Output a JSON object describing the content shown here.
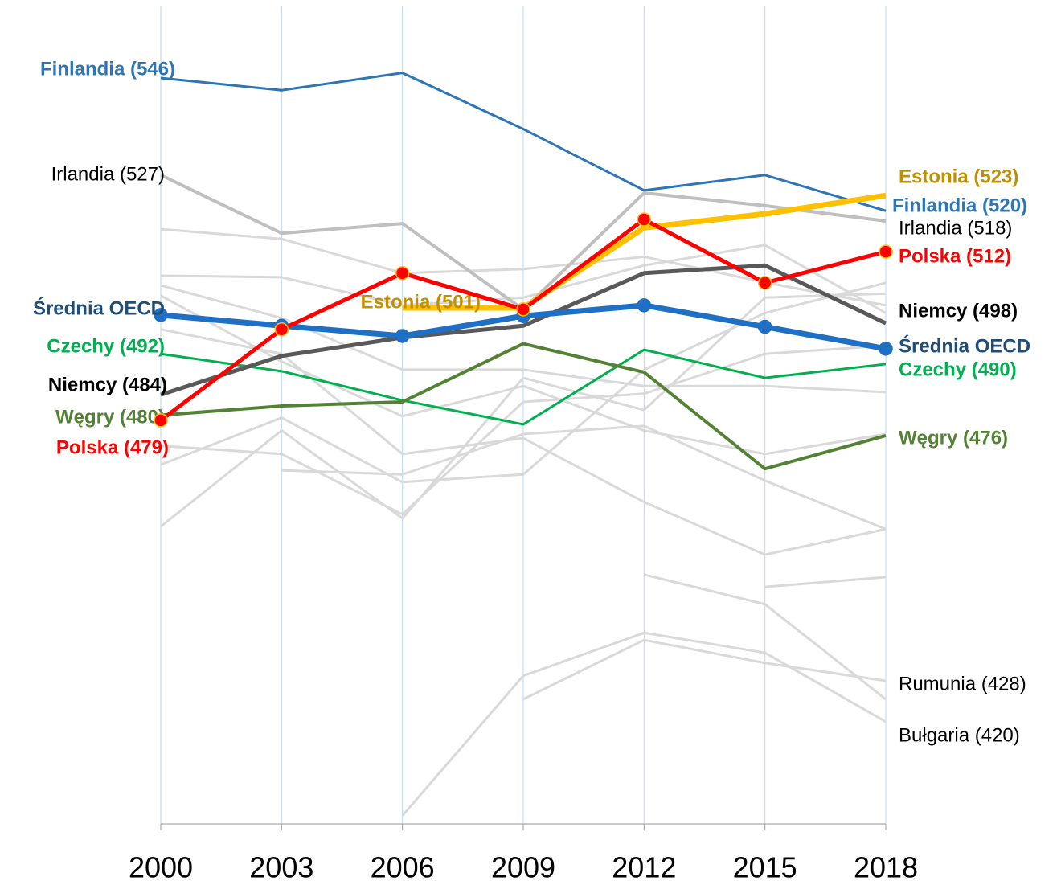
{
  "chart_data": {
    "type": "line",
    "categories": [
      "2000",
      "2003",
      "2006",
      "2009",
      "2012",
      "2015",
      "2018"
    ],
    "ylim": [
      400,
      560
    ],
    "series": [
      {
        "color": "#d9d9d9",
        "values": [
          516.4,
          514.5,
          507.8,
          508.6,
          511,
          506,
          501.5
        ]
      },
      {
        "color": "#d9d9d9",
        "values": [
          507.3,
          507,
          501.5,
          503,
          509.3,
          513.3,
          500
        ]
      },
      {
        "color": "#d9d9d9",
        "values": [
          505.4,
          499,
          488.9,
          488.9,
          485.7,
          485.7,
          484.5
        ]
      },
      {
        "color": "#d9d9d9",
        "values": [
          503.4,
          490.5,
          479.8,
          485.7,
          477,
          472.4,
          476.3
        ]
      },
      {
        "color": "#d9d9d9",
        "values": [
          496.8,
          492,
          472.4,
          475.5,
          463,
          452.7,
          457.7
        ]
      },
      {
        "color": "#d9d9d9",
        "values": [
          474,
          472.4,
          460.6,
          482.6,
          484.2,
          492,
          493.6
        ]
      },
      {
        "color": "#d9d9d9",
        "values": [
          470.3,
          479.5,
          466.9,
          468.4,
          488.9,
          500,
          505.9
        ]
      },
      {
        "color": "#d9d9d9",
        "values": [
          458.2,
          477,
          459.8,
          487.3,
          481,
          503,
          503.8
        ]
      },
      {
        "color": "#d9d9d9",
        "values": [
          null,
          469.2,
          468.4,
          476.3,
          477.9,
          467.2,
          457.7
        ]
      },
      {
        "color": "#d9d9d9",
        "values": [
          null,
          null,
          null,
          null,
          448.8,
          443,
          424.4
        ]
      },
      {
        "color": "#d9d9d9",
        "values": [
          null,
          null,
          null,
          null,
          null,
          446.4,
          448.3
        ]
      },
      {
        "name": "Irlandia",
        "color": "#bfbfbf",
        "label_color": "#000000",
        "values": [
          527,
          515.6,
          517.5,
          500.7,
          523.5,
          521,
          518
        ],
        "label_start": "Irlandia (527)",
        "label_end": "Irlandia (518)"
      },
      {
        "name": "Rumunia",
        "color": "#d9d9d9",
        "label_color": "#000000",
        "values": [
          null,
          null,
          null,
          424.4,
          436,
          431.5,
          428
        ],
        "label_end": "Rumunia (428)"
      },
      {
        "name": "Bułgaria",
        "color": "#d9d9d9",
        "label_color": "#000000",
        "values": [
          null,
          null,
          401.6,
          429,
          437.4,
          433.5,
          420
        ],
        "label_end": "Bułgaria (420)"
      },
      {
        "name": "Finlandia",
        "color": "#2e75b6",
        "label_color": "#2e75b6",
        "values": [
          546,
          543.6,
          547,
          536,
          524,
          527,
          520
        ],
        "label_start": "Finlandia (546)",
        "label_end": "Finlandia (520)"
      },
      {
        "name": "Czechy",
        "color": "#00b050",
        "label_color": "#00b050",
        "values": [
          492,
          488.6,
          482.9,
          478.2,
          492.8,
          487.3,
          490
        ],
        "label_start": "Czechy (492)",
        "label_end": "Czechy (490)"
      },
      {
        "name": "Węgry",
        "color": "#548235",
        "label_color": "#548235",
        "values": [
          480,
          481.8,
          482.6,
          494,
          488.4,
          469.5,
          476
        ],
        "label_start": "Węgry (480)",
        "label_end": "Węgry (476)"
      },
      {
        "name": "Niemcy",
        "color": "#595959",
        "label_color": "#000000",
        "values": [
          484,
          491.6,
          495.2,
          497.5,
          507.8,
          509.3,
          498
        ],
        "label_start": "Niemcy (484)",
        "label_end": "Niemcy (498)"
      },
      {
        "name": "Estonia",
        "color": "#ffc000",
        "label_color": "#bf9000",
        "values": [
          null,
          null,
          501,
          501,
          516.7,
          519.4,
          523
        ],
        "label_start": "Estonia (501)",
        "label_end": "Estonia (523)"
      },
      {
        "name": "Średnia OECD",
        "color": "#1f6fc5",
        "label_color": "#1f4e79",
        "markers": true,
        "values": [
          499.6,
          497.5,
          495.5,
          499.4,
          501.5,
          497.3,
          493
        ],
        "label_start": "Średnia OECD",
        "label_end": "Średnia OECD"
      },
      {
        "name": "Polska",
        "color": "#ff0000",
        "label_color": "#ff0000",
        "markers": true,
        "values": [
          479,
          496.8,
          507.8,
          500.7,
          518.3,
          505.9,
          512
        ],
        "label_start": "Polska (479)",
        "label_end": "Polska (512)"
      }
    ]
  }
}
